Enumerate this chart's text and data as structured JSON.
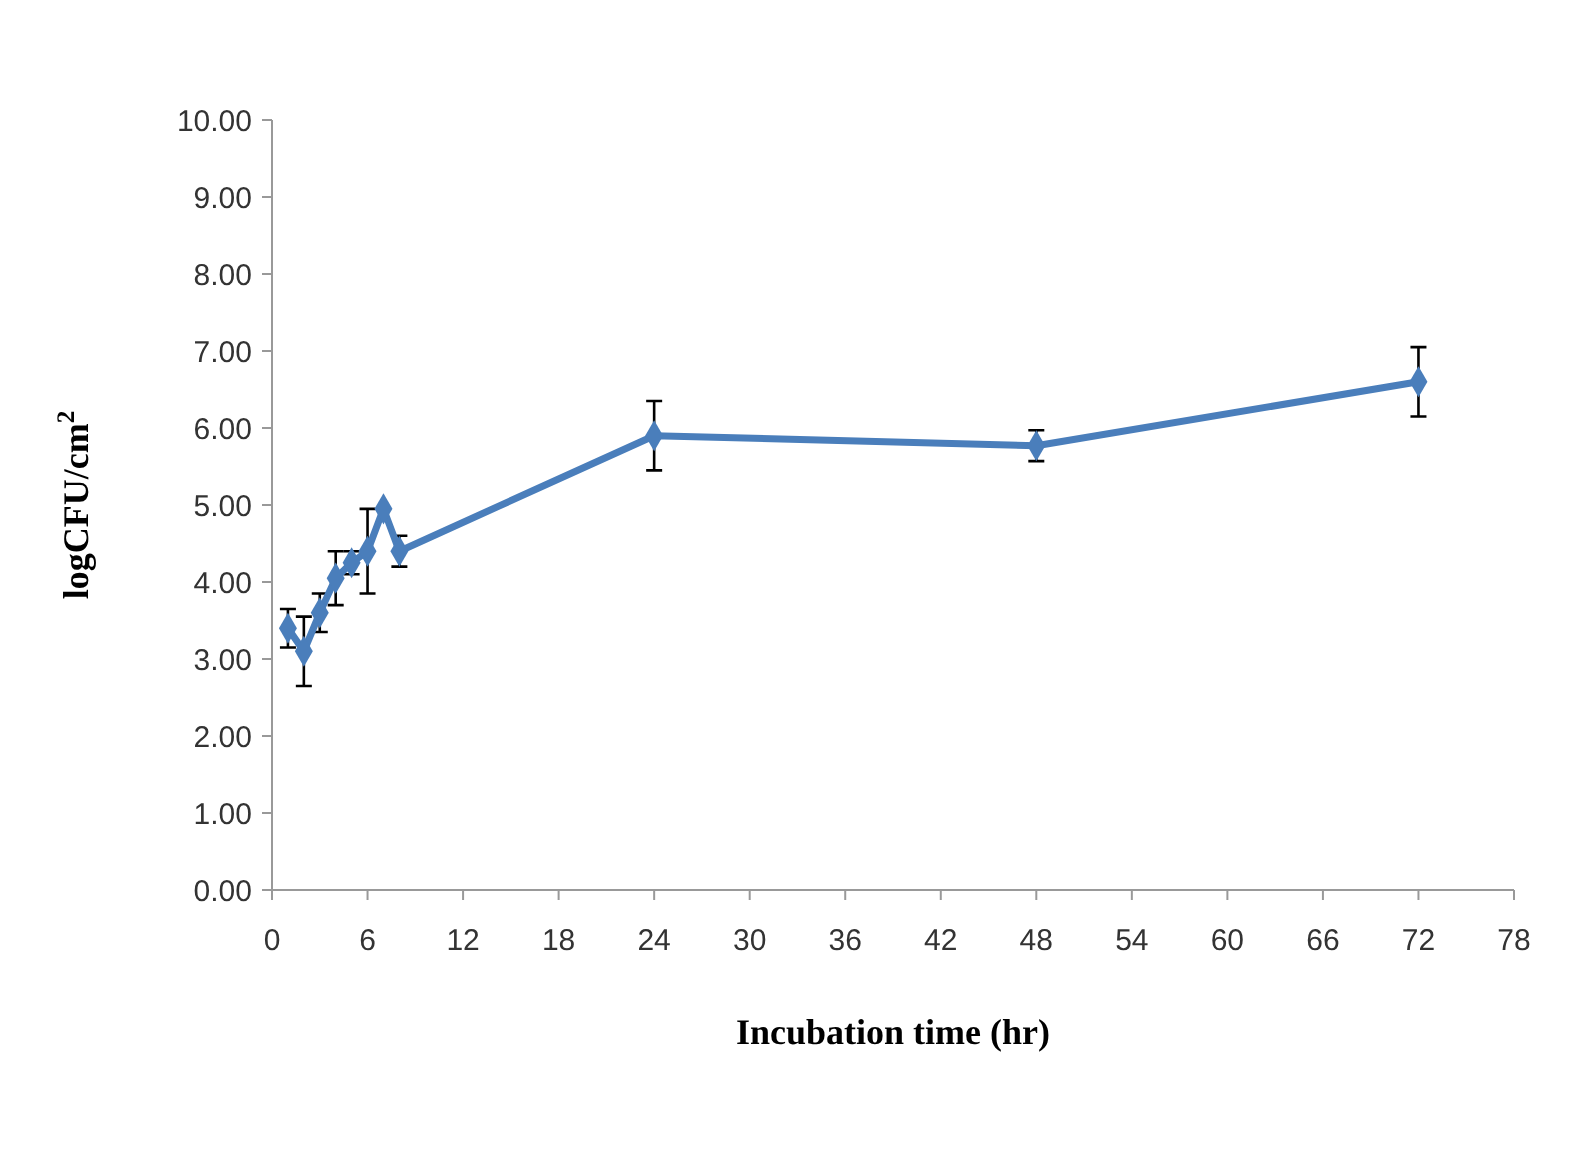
{
  "chart_data": {
    "type": "line",
    "xlabel": "Incubation time (hr)",
    "ylabel": "logCFU/cm$^{2}$",
    "x": [
      1,
      2,
      3,
      4,
      5,
      6,
      7,
      8,
      24,
      48,
      72
    ],
    "series": [
      {
        "color": "#4a7ebb",
        "values": [
          3.4,
          3.1,
          3.6,
          4.05,
          4.25,
          4.4,
          4.95,
          4.4,
          5.9,
          5.77,
          6.6
        ],
        "errors": [
          0.25,
          0.45,
          0.25,
          0.35,
          0.15,
          0.55,
          null,
          0.2,
          0.45,
          0.2,
          0.45
        ]
      }
    ],
    "xlim": [
      0,
      78
    ],
    "xticks": [
      0,
      6,
      12,
      18,
      24,
      30,
      36,
      42,
      48,
      54,
      60,
      66,
      72,
      78
    ],
    "ylim": [
      0,
      10
    ],
    "yticks": [
      {
        "value": 0,
        "label": "0.00"
      },
      {
        "value": 1,
        "label": "1.00"
      },
      {
        "value": 2,
        "label": "2.00"
      },
      {
        "value": 3,
        "label": "3.00"
      },
      {
        "value": 4,
        "label": "4.00"
      },
      {
        "value": 5,
        "label": "5.00"
      },
      {
        "value": 6,
        "label": "6.00"
      },
      {
        "value": 7,
        "label": "7.00"
      },
      {
        "value": 8,
        "label": "8.00"
      },
      {
        "value": 9,
        "label": "9.00"
      },
      {
        "value": 10,
        "label": "10.00"
      }
    ],
    "marker": "diamond",
    "grid": false
  }
}
